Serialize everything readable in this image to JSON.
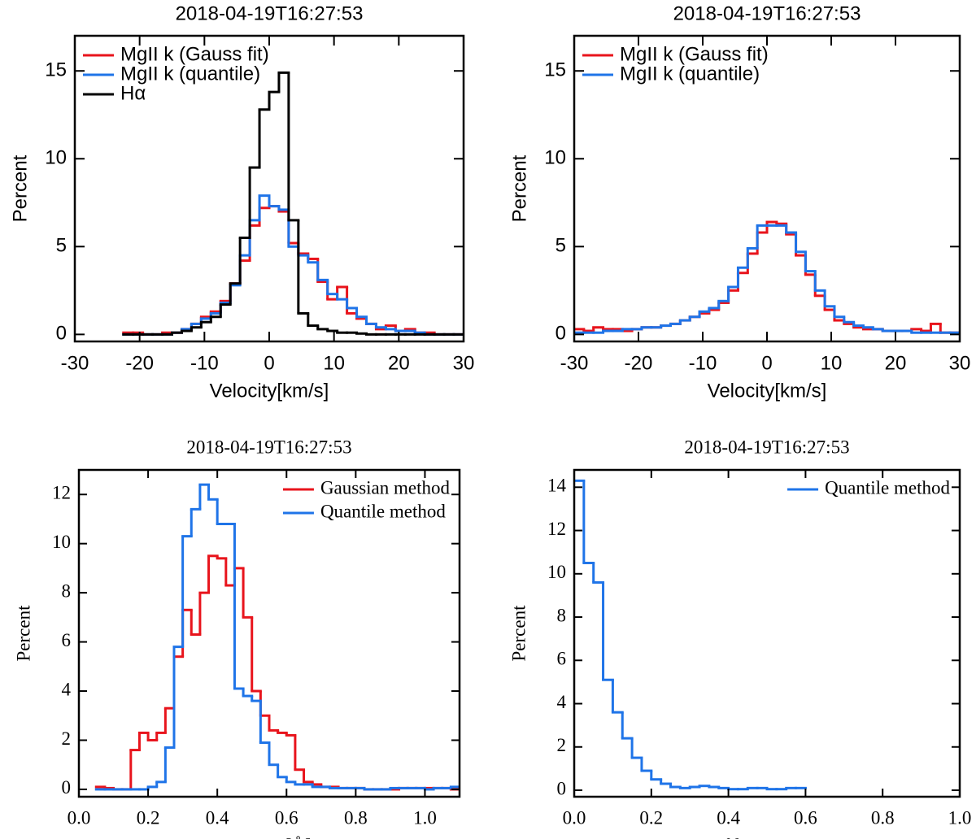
{
  "chart_data": [
    {
      "type": "histogram",
      "title": "2018-04-19T16:27:53",
      "x_label": "Velocity[km/s]",
      "y_label": "Percent",
      "bins": [
        -22.5,
        -21,
        -19.5,
        -18,
        -16.5,
        -15,
        -13.5,
        -12,
        -10.5,
        -9,
        -7.5,
        -6,
        -4.5,
        -3,
        -1.5,
        0,
        1.5,
        3,
        4.5,
        6,
        7.5,
        9,
        10.5,
        12,
        13.5,
        15,
        16.5,
        18,
        19.5,
        21,
        22.5,
        24,
        25.5,
        27,
        28.5,
        30
      ],
      "series": [
        {
          "name": "MgII k (Gauss fit)",
          "color": "#e8141c",
          "values": [
            0.1,
            0.1,
            0,
            0,
            0.1,
            0.1,
            0.3,
            0.6,
            1.0,
            1.3,
            1.9,
            2.9,
            4.2,
            6.2,
            7.2,
            7.3,
            7.0,
            5.2,
            4.6,
            4.3,
            3.0,
            2.0,
            2.7,
            1.2,
            0.9,
            0.6,
            0.3,
            0.5,
            0.2,
            0.3,
            0.1,
            0.1,
            0,
            0,
            0
          ]
        },
        {
          "name": "MgII k (quantile)",
          "color": "#1f74e8",
          "values": [
            0,
            0,
            0,
            0,
            0,
            0.1,
            0.3,
            0.6,
            0.9,
            1.2,
            1.8,
            2.8,
            4.5,
            6.5,
            7.9,
            7.3,
            7.1,
            5.0,
            4.5,
            4.1,
            3.1,
            2.3,
            2.0,
            1.5,
            1.0,
            0.6,
            0.4,
            0.3,
            0.2,
            0.2,
            0.1,
            0,
            0,
            0,
            0
          ]
        },
        {
          "name": "Hα",
          "color": "#000000",
          "values": [
            0,
            0,
            0,
            0,
            0,
            0.1,
            0.2,
            0.4,
            0.7,
            1.0,
            1.7,
            2.9,
            5.5,
            9.5,
            12.8,
            13.8,
            14.9,
            6.5,
            1.2,
            0.5,
            0.3,
            0.2,
            0.1,
            0.1,
            0.05,
            0,
            0,
            0,
            0,
            0,
            0,
            0,
            0,
            0,
            0
          ]
        }
      ],
      "xlim": [
        -30,
        30
      ],
      "ylim": [
        -0.4,
        17
      ],
      "xticks": [
        -30,
        -20,
        -10,
        0,
        10,
        20,
        30
      ],
      "yticks": [
        0,
        5,
        10,
        15
      ],
      "legend": "upper left"
    },
    {
      "type": "histogram",
      "title": "2018-04-19T16:27:53",
      "x_label": "Velocity[km/s]",
      "y_label": "Percent",
      "bins": [
        -30,
        -28.5,
        -27,
        -25.5,
        -24,
        -22.5,
        -21,
        -19.5,
        -18,
        -16.5,
        -15,
        -13.5,
        -12,
        -10.5,
        -9,
        -7.5,
        -6,
        -4.5,
        -3,
        -1.5,
        0,
        1.5,
        3,
        4.5,
        6,
        7.5,
        9,
        10.5,
        12,
        13.5,
        15,
        16.5,
        18,
        19.5,
        21,
        22.5,
        24,
        25.5,
        27,
        28.5,
        30
      ],
      "series": [
        {
          "name": "MgII k (Gauss fit)",
          "color": "#e8141c",
          "values": [
            0.3,
            0.2,
            0.4,
            0.3,
            0.3,
            0.2,
            0.3,
            0.4,
            0.4,
            0.5,
            0.6,
            0.8,
            1.0,
            1.2,
            1.4,
            1.8,
            2.5,
            3.5,
            4.6,
            5.8,
            6.4,
            6.3,
            5.7,
            4.5,
            3.4,
            2.2,
            1.4,
            0.8,
            0.6,
            0.4,
            0.3,
            0.3,
            0.2,
            0.2,
            0.2,
            0.3,
            0.2,
            0.6,
            0.1,
            0.1
          ]
        },
        {
          "name": "MgII k (quantile)",
          "color": "#1f74e8",
          "values": [
            0.1,
            0.1,
            0.1,
            0.2,
            0.2,
            0.3,
            0.3,
            0.4,
            0.4,
            0.5,
            0.6,
            0.8,
            1.0,
            1.3,
            1.5,
            1.9,
            2.7,
            3.8,
            4.9,
            6.2,
            6.2,
            6.2,
            5.8,
            4.7,
            3.6,
            2.5,
            1.6,
            1.0,
            0.7,
            0.5,
            0.4,
            0.3,
            0.2,
            0.2,
            0.2,
            0.1,
            0.1,
            0.1,
            0.1,
            0.1
          ]
        }
      ],
      "xlim": [
        -30,
        30
      ],
      "ylim": [
        -0.4,
        17
      ],
      "xticks": [
        -30,
        -20,
        -10,
        0,
        10,
        20,
        30
      ],
      "yticks": [
        0,
        5,
        10,
        15
      ],
      "legend": "upper left"
    },
    {
      "type": "histogram",
      "title": "2018-04-19T16:27:53",
      "x_label": "FWHM[Å]",
      "y_label": "Percent",
      "bins": [
        0.05,
        0.075,
        0.1,
        0.125,
        0.15,
        0.175,
        0.2,
        0.225,
        0.25,
        0.275,
        0.3,
        0.325,
        0.35,
        0.375,
        0.4,
        0.425,
        0.45,
        0.475,
        0.5,
        0.525,
        0.55,
        0.575,
        0.6,
        0.625,
        0.65,
        0.675,
        0.7,
        0.725,
        0.75,
        0.775,
        0.8,
        0.825,
        0.85,
        0.875,
        0.9,
        0.925,
        0.95,
        0.975,
        1.0,
        1.025,
        1.05,
        1.075,
        1.1
      ],
      "series": [
        {
          "name": "Gaussian method",
          "color": "#e8141c",
          "values": [
            0.1,
            0.05,
            0,
            0,
            1.6,
            2.3,
            2.0,
            2.3,
            3.3,
            5.4,
            7.3,
            6.3,
            8.0,
            9.5,
            9.4,
            8.3,
            9.0,
            7.0,
            4.0,
            3.0,
            2.4,
            2.3,
            2.2,
            0.8,
            0.3,
            0.2,
            0.1,
            0.1,
            0.05,
            0.05,
            0.05,
            0,
            0,
            0,
            0,
            0.05,
            0.05,
            0.05,
            0.05,
            0.05,
            0.05,
            0
          ]
        },
        {
          "name": "Quantile method",
          "color": "#1f74e8",
          "values": [
            0,
            0,
            0,
            0,
            0,
            0,
            0.1,
            0.3,
            1.7,
            5.8,
            10.3,
            11.4,
            12.4,
            11.8,
            10.8,
            10.8,
            4.1,
            3.8,
            3.6,
            1.9,
            1.0,
            0.5,
            0.3,
            0.2,
            0.2,
            0.1,
            0.1,
            0.05,
            0.05,
            0.05,
            0.05,
            0,
            0,
            0,
            0.05,
            0.05,
            0.05,
            0.05,
            0,
            0.05,
            0.05,
            0.1
          ]
        }
      ],
      "xlim": [
        0,
        1.1
      ],
      "ylim": [
        -0.3,
        13
      ],
      "xticks": [
        {
          "value": 0,
          "label": "0.0"
        },
        {
          "value": 0.2,
          "label": "0.2"
        },
        {
          "value": 0.4,
          "label": "0.4"
        },
        {
          "value": 0.6,
          "label": "0.6"
        },
        {
          "value": 0.8,
          "label": "0.8"
        },
        {
          "value": 1,
          "label": "1.0"
        }
      ],
      "yticks": [
        0,
        2,
        4,
        6,
        8,
        10,
        12
      ],
      "legend": "upper right"
    },
    {
      "type": "histogram",
      "title": "2018-04-19T16:27:53",
      "x_label": "Profile asymmetry",
      "y_label": "Percent",
      "bins": [
        0,
        0.025,
        0.05,
        0.075,
        0.1,
        0.125,
        0.15,
        0.175,
        0.2,
        0.225,
        0.25,
        0.275,
        0.3,
        0.325,
        0.35,
        0.375,
        0.4,
        0.425,
        0.45,
        0.475,
        0.5,
        0.525,
        0.55,
        0.575,
        0.6
      ],
      "series": [
        {
          "name": "Quantile method",
          "color": "#1f74e8",
          "values": [
            14.3,
            10.5,
            9.6,
            5.1,
            3.6,
            2.4,
            1.5,
            0.9,
            0.5,
            0.3,
            0.15,
            0.1,
            0.15,
            0.2,
            0.15,
            0.1,
            0.05,
            0.05,
            0.1,
            0.1,
            0.05,
            0.05,
            0.1,
            0.1
          ]
        }
      ],
      "xlim": [
        0,
        1
      ],
      "ylim": [
        -0.3,
        14.8
      ],
      "xticks": [
        {
          "value": 0,
          "label": "0.0"
        },
        {
          "value": 0.2,
          "label": "0.2"
        },
        {
          "value": 0.4,
          "label": "0.4"
        },
        {
          "value": 0.6,
          "label": "0.6"
        },
        {
          "value": 0.8,
          "label": "0.8"
        },
        {
          "value": 1,
          "label": "1.0"
        }
      ],
      "yticks": [
        0,
        2,
        4,
        6,
        8,
        10,
        12,
        14
      ],
      "legend": "upper right"
    }
  ]
}
